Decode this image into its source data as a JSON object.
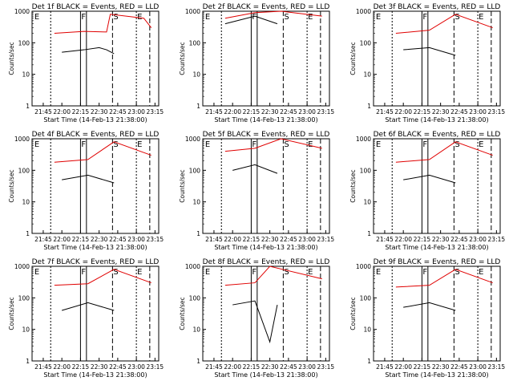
{
  "figure": {
    "xlabel": "Start Time (14-Feb-13 21:38:00)",
    "ylabel": "Counts/sec"
  },
  "chart_data": [
    {
      "type": "line",
      "title": "Det 1f BLACK = Events, RED = LLD",
      "x_ticks": [
        "21:45",
        "22:00",
        "22:15",
        "22:30",
        "22:45",
        "23:00",
        "23:15"
      ],
      "y_ticks": [
        "1",
        "10",
        "100",
        "1000"
      ],
      "ylog": true,
      "ylim": [
        1,
        1000
      ],
      "markers": [
        "E",
        "F",
        "S",
        "E"
      ],
      "series": [
        {
          "color": "#000000",
          "values": [
            [
              22.0,
              50
            ],
            [
              22.3,
              60
            ],
            [
              22.5,
              70
            ],
            [
              22.6,
              60
            ],
            [
              22.7,
              45
            ]
          ]
        },
        {
          "color": "#e00000",
          "values": [
            [
              21.9,
              200
            ],
            [
              22.3,
              230
            ],
            [
              22.6,
              220
            ],
            [
              22.65,
              800
            ],
            [
              23.1,
              600
            ],
            [
              23.2,
              300
            ]
          ]
        }
      ]
    },
    {
      "type": "line",
      "title": "Det 2f BLACK = Events, RED = LLD",
      "x_ticks": [
        "21:45",
        "22:00",
        "22:15",
        "22:30",
        "22:45",
        "23:00",
        "23:15"
      ],
      "y_ticks": [
        "1",
        "10",
        "100",
        "1000"
      ],
      "ylog": true,
      "ylim": [
        1,
        1000
      ],
      "markers": [
        "E",
        "F",
        "S",
        "E"
      ],
      "series": [
        {
          "color": "#000000",
          "values": [
            [
              21.9,
              400
            ],
            [
              22.3,
              700
            ],
            [
              22.6,
              400
            ]
          ]
        },
        {
          "color": "#e00000",
          "values": [
            [
              21.9,
              600
            ],
            [
              22.3,
              900
            ],
            [
              22.65,
              1000
            ],
            [
              23.2,
              700
            ]
          ]
        }
      ]
    },
    {
      "type": "line",
      "title": "Det 3f BLACK = Events, RED = LLD",
      "x_ticks": [
        "21:45",
        "22:00",
        "22:15",
        "22:30",
        "22:45",
        "23:00",
        "23:15"
      ],
      "y_ticks": [
        "1",
        "10",
        "100",
        "1000"
      ],
      "ylog": true,
      "ylim": [
        1,
        1000
      ],
      "markers": [
        "E",
        "F",
        "S",
        "E"
      ],
      "series": [
        {
          "color": "#000000",
          "values": [
            [
              22.0,
              60
            ],
            [
              22.35,
              70
            ],
            [
              22.7,
              40
            ]
          ]
        },
        {
          "color": "#e00000",
          "values": [
            [
              21.9,
              200
            ],
            [
              22.35,
              250
            ],
            [
              22.7,
              800
            ],
            [
              23.2,
              300
            ]
          ]
        }
      ]
    },
    {
      "type": "line",
      "title": "Det 4f BLACK = Events, RED = LLD",
      "x_ticks": [
        "21:45",
        "22:00",
        "22:15",
        "22:30",
        "22:45",
        "23:00",
        "23:15"
      ],
      "y_ticks": [
        "1",
        "10",
        "100",
        "1000"
      ],
      "ylog": true,
      "ylim": [
        1,
        1000
      ],
      "markers": [
        "E",
        "F",
        "S",
        "E"
      ],
      "series": [
        {
          "color": "#000000",
          "values": [
            [
              22.0,
              50
            ],
            [
              22.35,
              70
            ],
            [
              22.7,
              40
            ]
          ]
        },
        {
          "color": "#e00000",
          "values": [
            [
              21.9,
              180
            ],
            [
              22.35,
              220
            ],
            [
              22.7,
              800
            ],
            [
              23.2,
              300
            ]
          ]
        }
      ]
    },
    {
      "type": "line",
      "title": "Det 5f BLACK = Events, RED = LLD",
      "x_ticks": [
        "21:45",
        "22:00",
        "22:15",
        "22:30",
        "22:45",
        "23:00",
        "23:15"
      ],
      "y_ticks": [
        "1",
        "10",
        "100",
        "1000"
      ],
      "ylog": true,
      "ylim": [
        1,
        1000
      ],
      "markers": [
        "E",
        "F",
        "S",
        "E"
      ],
      "series": [
        {
          "color": "#000000",
          "values": [
            [
              22.0,
              100
            ],
            [
              22.3,
              150
            ],
            [
              22.6,
              80
            ]
          ]
        },
        {
          "color": "#e00000",
          "values": [
            [
              21.9,
              400
            ],
            [
              22.3,
              500
            ],
            [
              22.65,
              1000
            ],
            [
              23.2,
              500
            ]
          ]
        }
      ]
    },
    {
      "type": "line",
      "title": "Det 6f BLACK = Events, RED = LLD",
      "x_ticks": [
        "21:45",
        "22:00",
        "22:15",
        "22:30",
        "22:45",
        "23:00",
        "23:15"
      ],
      "y_ticks": [
        "1",
        "10",
        "100",
        "1000"
      ],
      "ylog": true,
      "ylim": [
        1,
        1000
      ],
      "markers": [
        "E",
        "F",
        "S",
        "E"
      ],
      "series": [
        {
          "color": "#000000",
          "values": [
            [
              22.0,
              50
            ],
            [
              22.35,
              70
            ],
            [
              22.7,
              40
            ]
          ]
        },
        {
          "color": "#e00000",
          "values": [
            [
              21.9,
              180
            ],
            [
              22.35,
              220
            ],
            [
              22.7,
              800
            ],
            [
              23.2,
              300
            ]
          ]
        }
      ]
    },
    {
      "type": "line",
      "title": "Det 7f BLACK = Events, RED = LLD",
      "x_ticks": [
        "21:45",
        "22:00",
        "22:15",
        "22:30",
        "22:45",
        "23:00",
        "23:15"
      ],
      "y_ticks": [
        "1",
        "10",
        "100",
        "1000"
      ],
      "ylog": true,
      "ylim": [
        1,
        1000
      ],
      "markers": [
        "E",
        "F",
        "S",
        "E"
      ],
      "series": [
        {
          "color": "#000000",
          "values": [
            [
              22.0,
              40
            ],
            [
              22.35,
              70
            ],
            [
              22.7,
              40
            ]
          ]
        },
        {
          "color": "#e00000",
          "values": [
            [
              21.9,
              250
            ],
            [
              22.35,
              280
            ],
            [
              22.7,
              800
            ],
            [
              23.2,
              300
            ]
          ]
        }
      ]
    },
    {
      "type": "line",
      "title": "Det 8f BLACK = Events, RED = LLD",
      "x_ticks": [
        "21:45",
        "22:00",
        "22:15",
        "22:30",
        "22:45",
        "23:00",
        "23:15"
      ],
      "y_ticks": [
        "1",
        "10",
        "100",
        "1000"
      ],
      "ylog": true,
      "ylim": [
        1,
        1000
      ],
      "markers": [
        "E",
        "F",
        "S",
        "E"
      ],
      "series": [
        {
          "color": "#000000",
          "values": [
            [
              22.0,
              60
            ],
            [
              22.3,
              80
            ],
            [
              22.5,
              4
            ],
            [
              22.6,
              60
            ]
          ]
        },
        {
          "color": "#e00000",
          "values": [
            [
              21.9,
              250
            ],
            [
              22.3,
              300
            ],
            [
              22.5,
              1000
            ],
            [
              23.2,
              400
            ]
          ]
        }
      ]
    },
    {
      "type": "line",
      "title": "Det 9f BLACK = Events, RED = LLD",
      "x_ticks": [
        "21:45",
        "22:00",
        "22:15",
        "22:30",
        "22:45",
        "23:00",
        "23:15"
      ],
      "y_ticks": [
        "1",
        "10",
        "100",
        "1000"
      ],
      "ylog": true,
      "ylim": [
        1,
        1000
      ],
      "markers": [
        "E",
        "F",
        "S",
        "E"
      ],
      "series": [
        {
          "color": "#000000",
          "values": [
            [
              22.0,
              50
            ],
            [
              22.35,
              70
            ],
            [
              22.7,
              40
            ]
          ]
        },
        {
          "color": "#e00000",
          "values": [
            [
              21.9,
              220
            ],
            [
              22.35,
              250
            ],
            [
              22.7,
              800
            ],
            [
              23.2,
              300
            ]
          ]
        }
      ]
    }
  ]
}
